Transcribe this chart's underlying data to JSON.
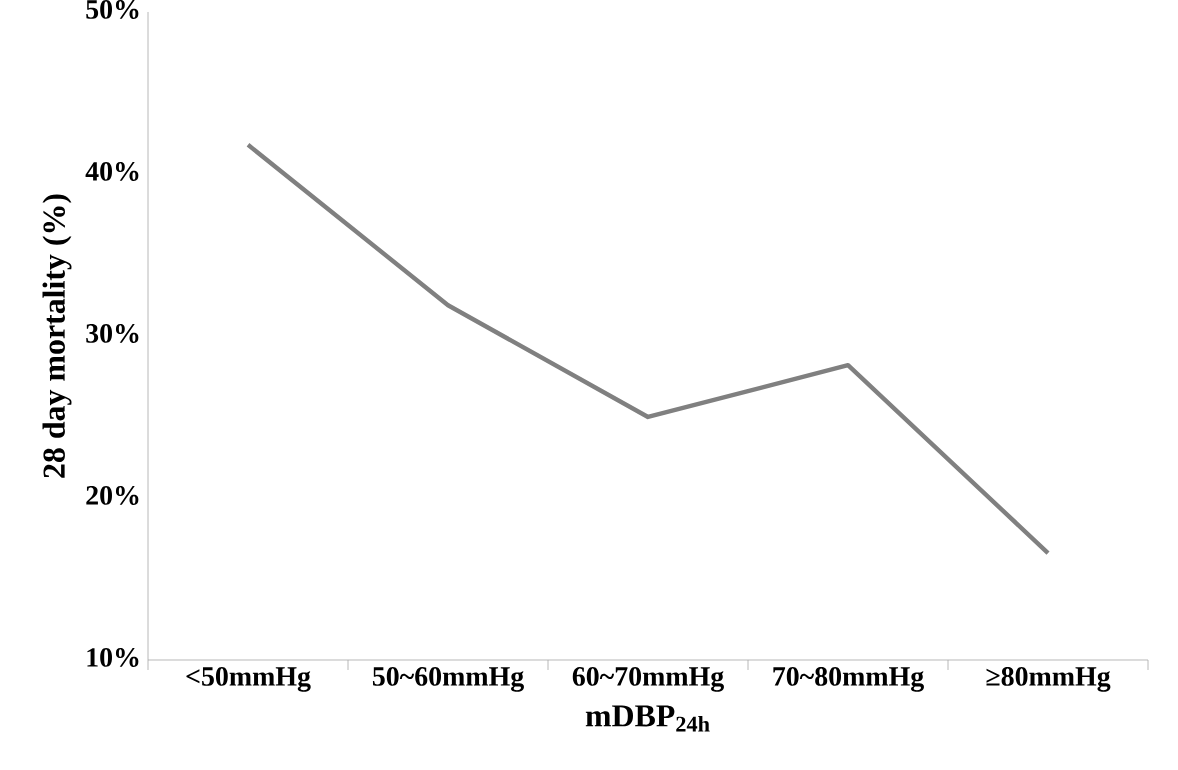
{
  "chart_data": {
    "type": "line",
    "xlabel": "mDBP$_{24h}$",
    "ylabel": "28 day mortality (%)",
    "categories": [
      "<50mmHg",
      "50~60mmHg",
      "60~70mmHg",
      "70~80mmHg",
      "≥80mmHg"
    ],
    "series": [
      {
        "color": "#808080",
        "values": [
          41.8,
          31.9,
          25.0,
          28.2,
          16.6
        ]
      }
    ],
    "ylim": [
      10,
      50
    ],
    "yticks": [
      {
        "value": 10,
        "label": "10%"
      },
      {
        "value": 20,
        "label": "20%"
      },
      {
        "value": 30,
        "label": "30%"
      },
      {
        "value": 40,
        "label": "40%"
      },
      {
        "value": 50,
        "label": "50%"
      }
    ],
    "marker": "none",
    "line_style": "solid"
  }
}
